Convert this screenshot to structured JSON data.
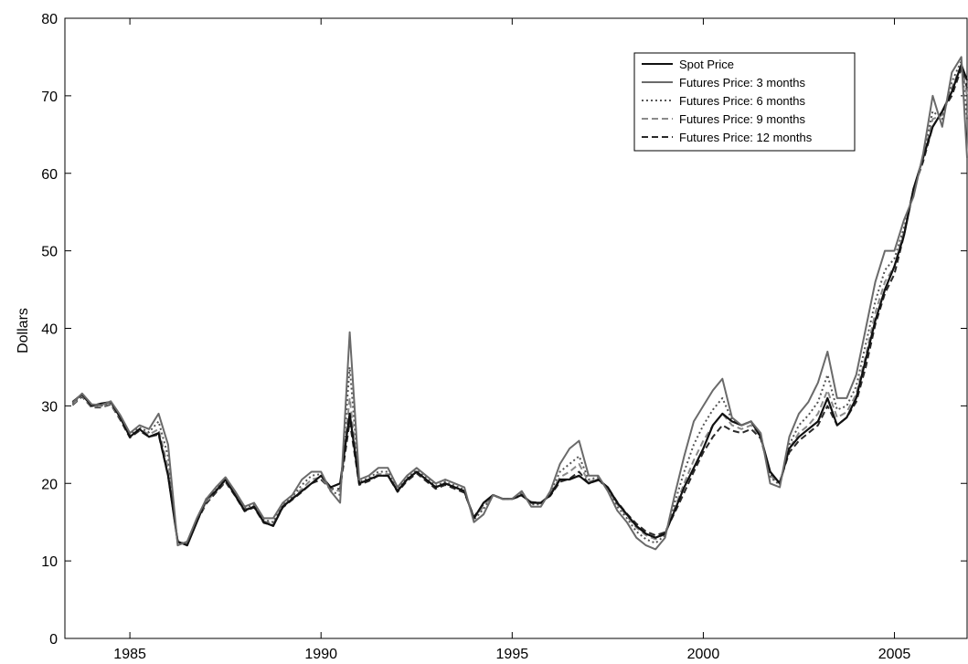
{
  "chart_data": {
    "type": "line",
    "title": "",
    "xlabel": "",
    "ylabel": "Dollars",
    "xlim": [
      1983.3,
      2006.9
    ],
    "ylim": [
      0,
      80
    ],
    "x_ticks": [
      1985,
      1990,
      1995,
      2000,
      2005
    ],
    "y_ticks": [
      0,
      10,
      20,
      30,
      40,
      50,
      60,
      70,
      80
    ],
    "grid": false,
    "legend_position": "top-right",
    "x": [
      1983.5,
      1983.75,
      1984,
      1984.25,
      1984.5,
      1984.75,
      1985,
      1985.25,
      1985.5,
      1985.75,
      1986,
      1986.25,
      1986.5,
      1986.75,
      1987,
      1987.25,
      1987.5,
      1987.75,
      1988,
      1988.25,
      1988.5,
      1988.75,
      1989,
      1989.25,
      1989.5,
      1989.75,
      1990,
      1990.25,
      1990.5,
      1990.75,
      1991,
      1991.25,
      1991.5,
      1991.75,
      1992,
      1992.25,
      1992.5,
      1992.75,
      1993,
      1993.25,
      1993.5,
      1993.75,
      1994,
      1994.25,
      1994.5,
      1994.75,
      1995,
      1995.25,
      1995.5,
      1995.75,
      1996,
      1996.25,
      1996.5,
      1996.75,
      1997,
      1997.25,
      1997.5,
      1997.75,
      1998,
      1998.25,
      1998.5,
      1998.75,
      1999,
      1999.25,
      1999.5,
      1999.75,
      2000,
      2000.25,
      2000.5,
      2000.75,
      2001,
      2001.25,
      2001.5,
      2001.75,
      2002,
      2002.25,
      2002.5,
      2002.75,
      2003,
      2003.25,
      2003.5,
      2003.75,
      2004,
      2004.25,
      2004.5,
      2004.75,
      2005,
      2005.25,
      2005.5,
      2005.75,
      2006,
      2006.25,
      2006.5,
      2006.75,
      2006.9
    ],
    "series": [
      {
        "name": "Spot Price",
        "style": "solid",
        "color": "#111111",
        "values": [
          30.5,
          31.5,
          30.0,
          30.3,
          30.5,
          28.5,
          26.0,
          27.0,
          26.0,
          26.5,
          21.0,
          12.5,
          12.0,
          15.0,
          18.0,
          19.0,
          20.5,
          18.5,
          16.5,
          17.0,
          15.0,
          14.5,
          17.0,
          18.0,
          19.0,
          20.0,
          21.0,
          19.5,
          20.0,
          29.0,
          20.0,
          20.5,
          21.0,
          21.0,
          19.0,
          20.5,
          21.5,
          20.5,
          19.5,
          20.0,
          19.5,
          19.0,
          15.5,
          17.5,
          18.5,
          18.0,
          18.0,
          18.5,
          17.5,
          17.5,
          18.5,
          20.5,
          20.5,
          21.0,
          20.0,
          20.5,
          19.5,
          17.5,
          16.0,
          14.5,
          13.5,
          13.0,
          13.5,
          16.5,
          19.5,
          22.0,
          24.5,
          27.5,
          29.0,
          28.0,
          27.5,
          28.0,
          26.0,
          21.5,
          20.0,
          24.5,
          26.0,
          27.0,
          28.0,
          31.0,
          27.5,
          28.5,
          31.0,
          36.0,
          41.0,
          45.0,
          48.0,
          52.0,
          58.0,
          62.0,
          66.0,
          68.0,
          70.5,
          74.0,
          72.0
        ]
      },
      {
        "name": "Futures Price: 3 months",
        "style": "solid",
        "color": "#6a6a6a",
        "values": [
          30.4,
          31.6,
          30.2,
          30.1,
          30.6,
          28.8,
          26.5,
          27.5,
          27.0,
          29.0,
          25.0,
          12.0,
          12.5,
          15.5,
          18.0,
          19.5,
          20.8,
          19.0,
          17.0,
          17.5,
          15.5,
          15.5,
          17.5,
          18.5,
          20.5,
          21.5,
          21.5,
          19.0,
          17.5,
          39.5,
          20.5,
          21.0,
          22.0,
          22.0,
          19.5,
          21.0,
          22.0,
          21.0,
          20.0,
          20.5,
          20.0,
          19.5,
          15.0,
          16.0,
          18.5,
          18.0,
          18.0,
          19.0,
          17.0,
          17.0,
          19.0,
          22.5,
          24.5,
          25.5,
          21.0,
          21.0,
          19.0,
          16.5,
          15.0,
          13.0,
          12.0,
          11.5,
          13.0,
          18.5,
          23.5,
          28.0,
          30.0,
          32.0,
          33.5,
          28.5,
          27.5,
          28.0,
          26.5,
          20.0,
          19.5,
          26.0,
          29.0,
          30.5,
          33.0,
          37.0,
          31.0,
          31.0,
          34.0,
          40.0,
          46.0,
          50.0,
          50.0,
          54.0,
          57.0,
          62.5,
          70.0,
          66.0,
          73.0,
          75.0,
          62.0
        ]
      },
      {
        "name": "Futures Price: 6 months",
        "style": "dotted",
        "color": "#555555",
        "values": [
          30.3,
          31.4,
          30.0,
          30.0,
          30.4,
          28.6,
          26.3,
          27.2,
          26.6,
          28.0,
          23.5,
          12.2,
          12.3,
          15.3,
          17.8,
          19.2,
          20.6,
          18.8,
          16.8,
          17.3,
          15.3,
          15.0,
          17.3,
          18.3,
          19.8,
          21.0,
          21.2,
          19.0,
          18.5,
          35.0,
          20.2,
          20.7,
          21.5,
          21.5,
          19.3,
          20.7,
          21.7,
          20.7,
          19.7,
          20.2,
          19.7,
          19.2,
          15.3,
          16.7,
          18.5,
          18.0,
          18.0,
          18.8,
          17.3,
          17.3,
          18.8,
          21.5,
          22.5,
          23.5,
          20.5,
          20.8,
          19.3,
          17.0,
          15.5,
          13.8,
          12.8,
          12.3,
          13.3,
          17.5,
          21.5,
          25.0,
          27.5,
          29.5,
          31.0,
          28.2,
          27.5,
          28.0,
          26.3,
          20.8,
          19.8,
          25.0,
          27.5,
          28.8,
          30.5,
          34.0,
          29.5,
          30.0,
          32.5,
          38.0,
          43.5,
          47.5,
          49.0,
          53.0,
          57.5,
          62.2,
          68.0,
          67.0,
          71.8,
          74.5,
          67.0
        ]
      },
      {
        "name": "Futures Price: 9 months",
        "style": "dashed",
        "color": "#8a8a8a",
        "values": [
          30.2,
          31.3,
          29.9,
          29.9,
          30.3,
          28.4,
          26.1,
          27.0,
          26.3,
          27.0,
          22.0,
          12.4,
          12.2,
          15.2,
          17.6,
          19.0,
          20.4,
          18.6,
          16.6,
          17.1,
          15.1,
          14.8,
          17.1,
          18.1,
          19.3,
          20.5,
          20.8,
          19.2,
          19.0,
          31.0,
          20.0,
          20.5,
          21.2,
          21.2,
          19.1,
          20.5,
          21.5,
          20.5,
          19.5,
          20.0,
          19.5,
          19.0,
          15.5,
          17.0,
          18.5,
          18.0,
          18.0,
          18.6,
          17.5,
          17.4,
          18.6,
          20.8,
          21.5,
          22.5,
          20.2,
          20.6,
          19.4,
          17.3,
          15.8,
          14.3,
          13.3,
          12.8,
          13.5,
          16.8,
          20.0,
          23.0,
          25.5,
          27.5,
          29.0,
          27.5,
          27.0,
          27.5,
          26.0,
          21.0,
          20.0,
          24.5,
          26.5,
          27.5,
          29.0,
          32.0,
          28.5,
          29.2,
          31.5,
          36.5,
          42.0,
          46.0,
          48.0,
          52.5,
          57.8,
          62.0,
          67.0,
          67.5,
          71.0,
          74.0,
          70.0
        ]
      },
      {
        "name": "Futures Price: 12 months",
        "style": "dashed",
        "color": "#2a2a2a",
        "values": [
          30.1,
          31.2,
          29.8,
          29.8,
          30.2,
          28.2,
          25.9,
          26.8,
          26.0,
          26.3,
          21.0,
          12.6,
          12.1,
          15.1,
          17.4,
          18.8,
          20.2,
          18.4,
          16.4,
          16.9,
          14.9,
          14.6,
          16.9,
          17.9,
          18.9,
          20.0,
          20.5,
          19.3,
          19.3,
          28.0,
          19.8,
          20.3,
          21.0,
          21.0,
          18.9,
          20.3,
          21.3,
          20.3,
          19.3,
          19.8,
          19.3,
          18.8,
          15.7,
          17.3,
          18.5,
          18.0,
          18.0,
          18.4,
          17.6,
          17.5,
          18.4,
          20.2,
          20.6,
          21.5,
          20.0,
          20.4,
          19.5,
          17.6,
          16.1,
          14.8,
          13.8,
          13.3,
          13.7,
          16.2,
          18.8,
          21.5,
          24.0,
          26.0,
          27.5,
          26.8,
          26.5,
          27.0,
          25.8,
          21.2,
          20.2,
          24.0,
          25.5,
          26.5,
          27.5,
          30.0,
          27.5,
          28.5,
          30.5,
          35.0,
          40.5,
          44.5,
          47.0,
          52.0,
          58.0,
          61.5,
          66.0,
          68.0,
          70.0,
          73.5,
          71.0
        ]
      }
    ]
  }
}
